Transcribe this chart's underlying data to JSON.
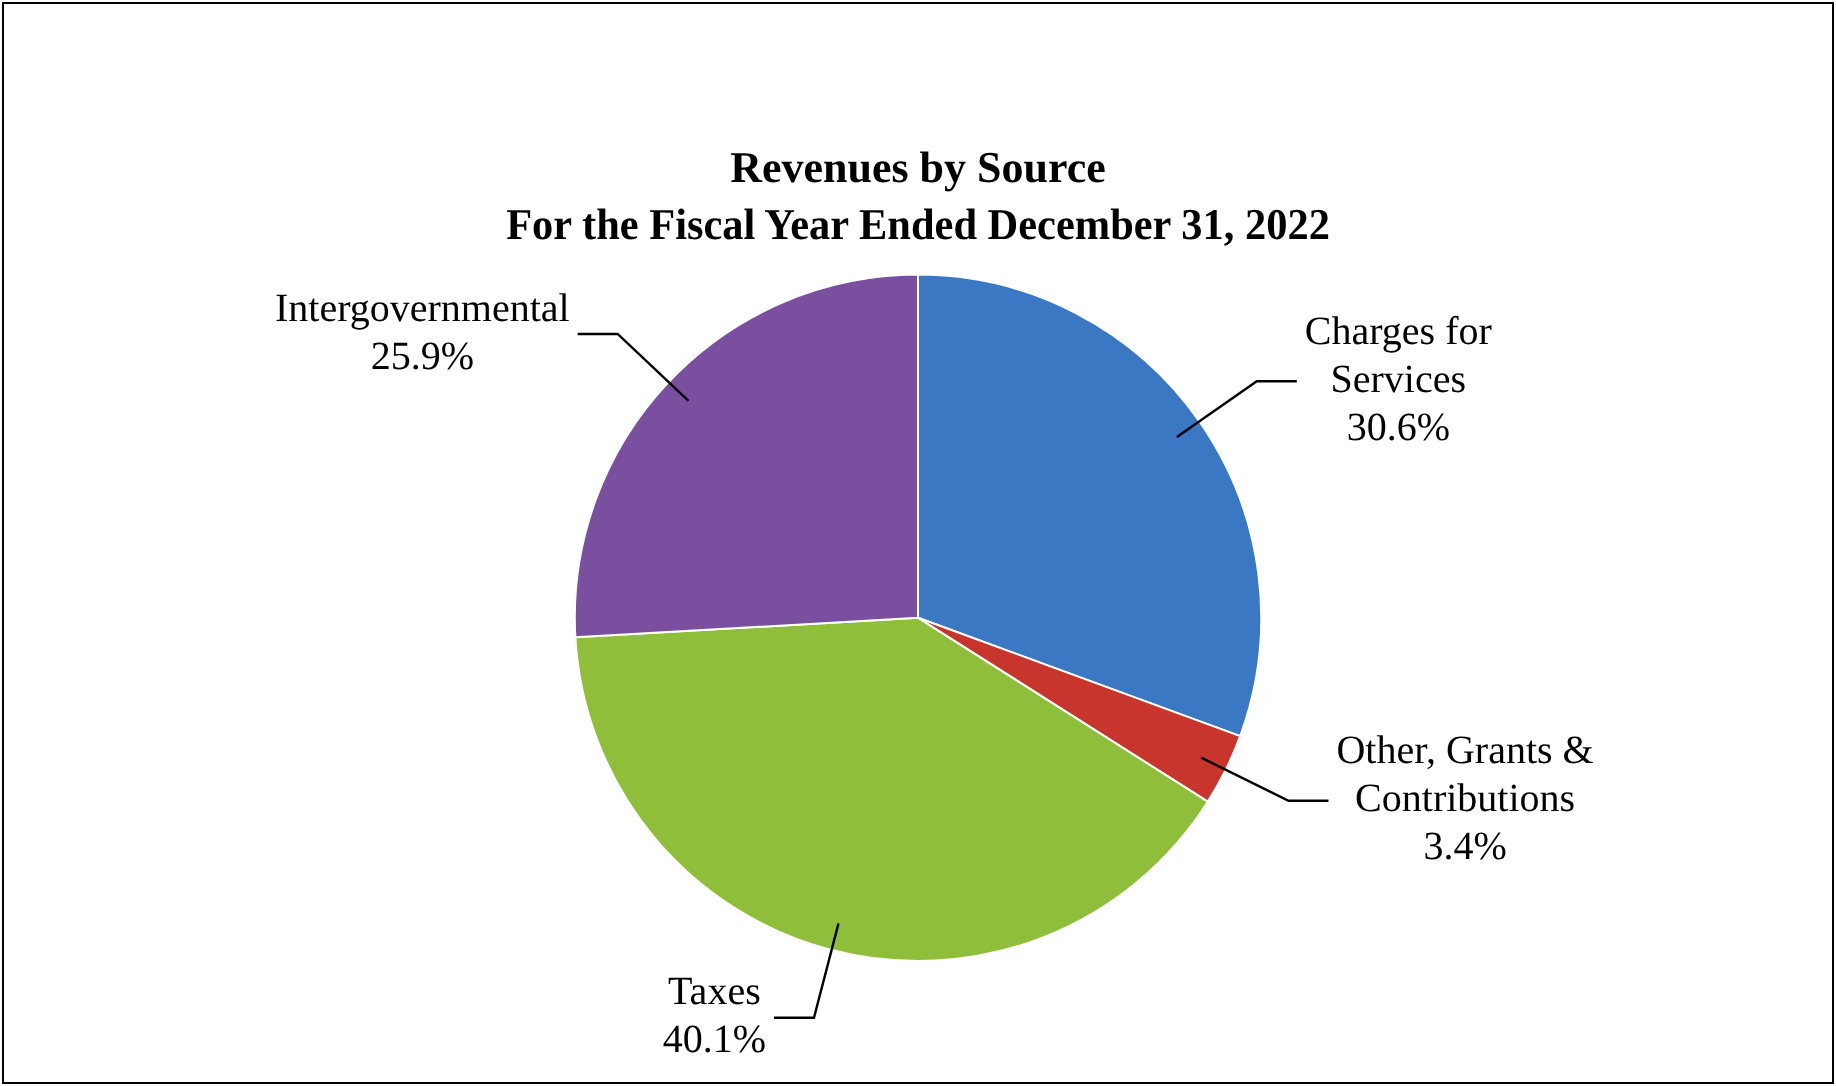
{
  "chart_data": {
    "type": "pie",
    "title": "Revenues by Source",
    "subtitle": "For the Fiscal Year Ended December 31, 2022",
    "categories": [
      "Charges for Services",
      "Other, Grants & Contributions",
      "Taxes",
      "Intergovernmental"
    ],
    "values": [
      30.6,
      3.4,
      40.1,
      25.9
    ],
    "colors": [
      "#3b78c4",
      "#c8352c",
      "#8fbf3a",
      "#7a4f9f"
    ],
    "value_labels": [
      "30.6%",
      "3.4%",
      "40.1%",
      "25.9%"
    ],
    "legend": false
  }
}
